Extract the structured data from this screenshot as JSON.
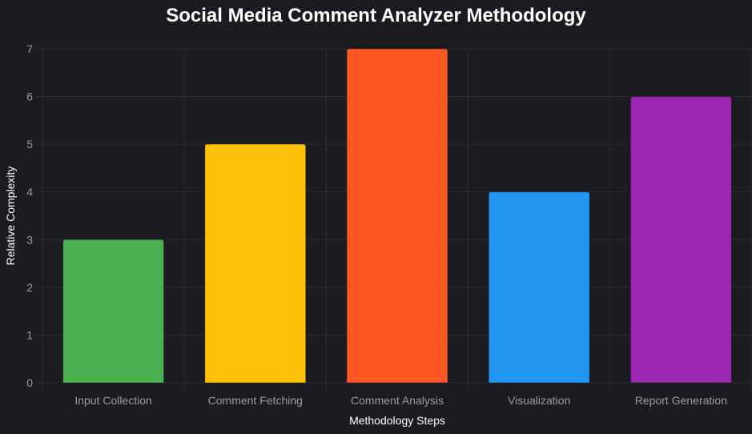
{
  "chart_data": {
    "type": "bar",
    "title": "Social Media Comment Analyzer Methodology",
    "xlabel": "Methodology Steps",
    "ylabel": "Relative Complexity",
    "categories": [
      "Input Collection",
      "Comment Fetching",
      "Comment Analysis",
      "Visualization",
      "Report Generation"
    ],
    "values": [
      3,
      5,
      7,
      4,
      6
    ],
    "colors": [
      "#4caf50",
      "#ffc107",
      "#ff5722",
      "#2196f3",
      "#9c27b0"
    ],
    "ylim": [
      0,
      7
    ],
    "yticks": [
      0,
      1,
      2,
      3,
      4,
      5,
      6,
      7
    ],
    "grid": true,
    "legend": "none"
  }
}
